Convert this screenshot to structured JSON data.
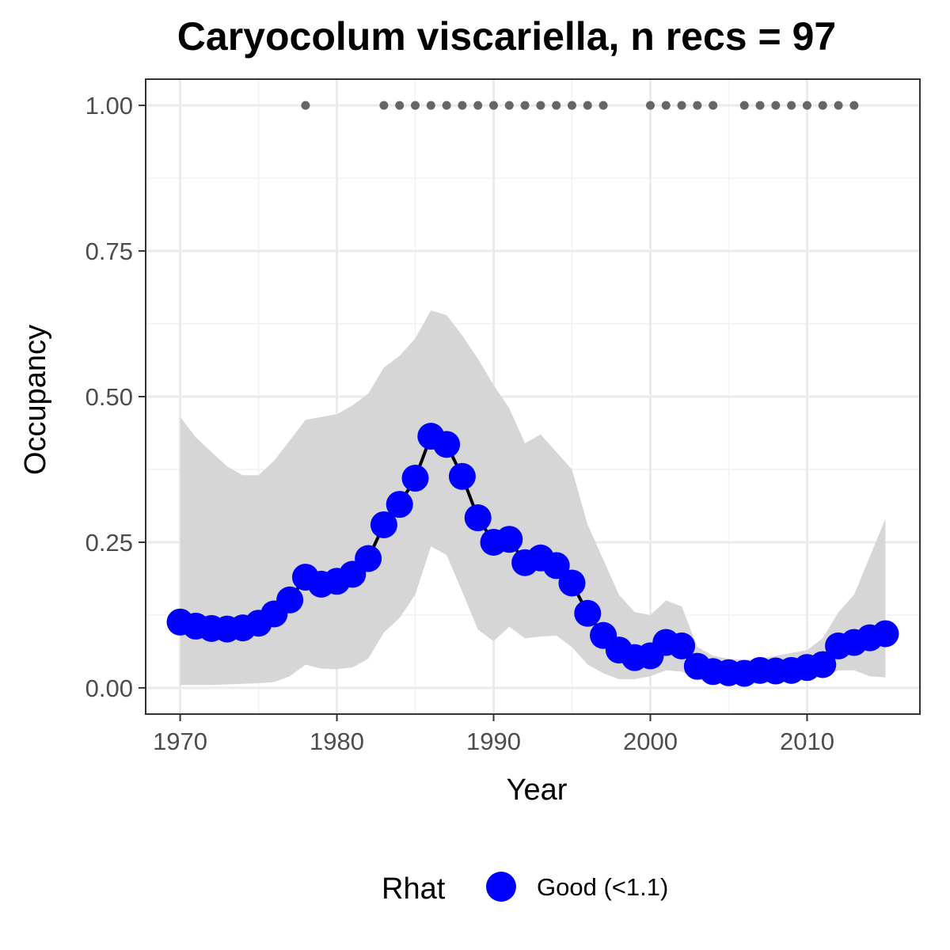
{
  "chart_data": {
    "type": "line",
    "title": "Caryocolum viscariella, n recs = 97",
    "xlabel": "Year",
    "ylabel": "Occupancy",
    "xlim": [
      1967.8,
      2017.2
    ],
    "ylim": [
      -0.045,
      1.045
    ],
    "x_ticks": [
      1970,
      1980,
      1990,
      2000,
      2010
    ],
    "x_tick_labels": [
      "1970",
      "1980",
      "1990",
      "2000",
      "2010"
    ],
    "y_ticks": [
      0,
      0.25,
      0.5,
      0.75,
      1.0
    ],
    "y_tick_labels": [
      "0.00",
      "0.25",
      "0.50",
      "0.75",
      "1.00"
    ],
    "grid": true,
    "legend": {
      "position": "bottom",
      "title": "Rhat",
      "entries": [
        {
          "label": "Good (<1.1)",
          "color": "#0000ff"
        }
      ]
    },
    "series": [
      {
        "name": "Good (<1.1)",
        "color": "#0000ff",
        "x": [
          1970,
          1971,
          1972,
          1973,
          1974,
          1975,
          1976,
          1977,
          1978,
          1979,
          1980,
          1981,
          1982,
          1983,
          1984,
          1985,
          1986,
          1987,
          1988,
          1989,
          1990,
          1991,
          1992,
          1993,
          1994,
          1995,
          1996,
          1997,
          1998,
          1999,
          2000,
          2001,
          2002,
          2003,
          2004,
          2005,
          2006,
          2007,
          2008,
          2009,
          2010,
          2011,
          2012,
          2013,
          2014,
          2015
        ],
        "y": [
          0.113,
          0.106,
          0.102,
          0.101,
          0.103,
          0.111,
          0.127,
          0.151,
          0.19,
          0.178,
          0.183,
          0.195,
          0.222,
          0.28,
          0.315,
          0.36,
          0.432,
          0.418,
          0.363,
          0.292,
          0.25,
          0.255,
          0.215,
          0.223,
          0.21,
          0.18,
          0.128,
          0.09,
          0.065,
          0.052,
          0.055,
          0.078,
          0.072,
          0.037,
          0.028,
          0.026,
          0.025,
          0.03,
          0.029,
          0.03,
          0.035,
          0.04,
          0.072,
          0.078,
          0.086,
          0.093
        ]
      }
    ],
    "ribbon": {
      "color": "#d6d6d6",
      "x": [
        1970,
        1971,
        1972,
        1973,
        1974,
        1975,
        1976,
        1977,
        1978,
        1979,
        1980,
        1981,
        1982,
        1983,
        1984,
        1985,
        1986,
        1987,
        1988,
        1989,
        1990,
        1991,
        1992,
        1993,
        1994,
        1995,
        1996,
        1997,
        1998,
        1999,
        2000,
        2001,
        2002,
        2003,
        2004,
        2005,
        2006,
        2007,
        2008,
        2009,
        2010,
        2011,
        2012,
        2013,
        2014,
        2015
      ],
      "upper": [
        0.465,
        0.43,
        0.405,
        0.38,
        0.365,
        0.365,
        0.39,
        0.425,
        0.46,
        0.465,
        0.47,
        0.485,
        0.505,
        0.55,
        0.57,
        0.6,
        0.648,
        0.64,
        0.605,
        0.565,
        0.52,
        0.48,
        0.42,
        0.435,
        0.405,
        0.375,
        0.28,
        0.22,
        0.16,
        0.13,
        0.125,
        0.15,
        0.14,
        0.07,
        0.055,
        0.05,
        0.048,
        0.05,
        0.055,
        0.06,
        0.065,
        0.085,
        0.13,
        0.16,
        0.225,
        0.29
      ],
      "lower": [
        0.005,
        0.005,
        0.005,
        0.006,
        0.007,
        0.008,
        0.01,
        0.02,
        0.04,
        0.033,
        0.032,
        0.035,
        0.05,
        0.095,
        0.12,
        0.16,
        0.243,
        0.228,
        0.165,
        0.1,
        0.08,
        0.105,
        0.085,
        0.088,
        0.09,
        0.07,
        0.04,
        0.025,
        0.015,
        0.015,
        0.02,
        0.03,
        0.028,
        0.015,
        0.008,
        0.007,
        0.006,
        0.008,
        0.01,
        0.012,
        0.015,
        0.02,
        0.03,
        0.03,
        0.02,
        0.018
      ]
    },
    "records": {
      "color": "#666666",
      "y": 1.0,
      "x": [
        1978,
        1983,
        1984,
        1985,
        1986,
        1987,
        1988,
        1989,
        1990,
        1991,
        1992,
        1993,
        1994,
        1995,
        1996,
        1997,
        2000,
        2001,
        2002,
        2003,
        2004,
        2006,
        2007,
        2008,
        2009,
        2010,
        2011,
        2012,
        2013
      ]
    }
  }
}
